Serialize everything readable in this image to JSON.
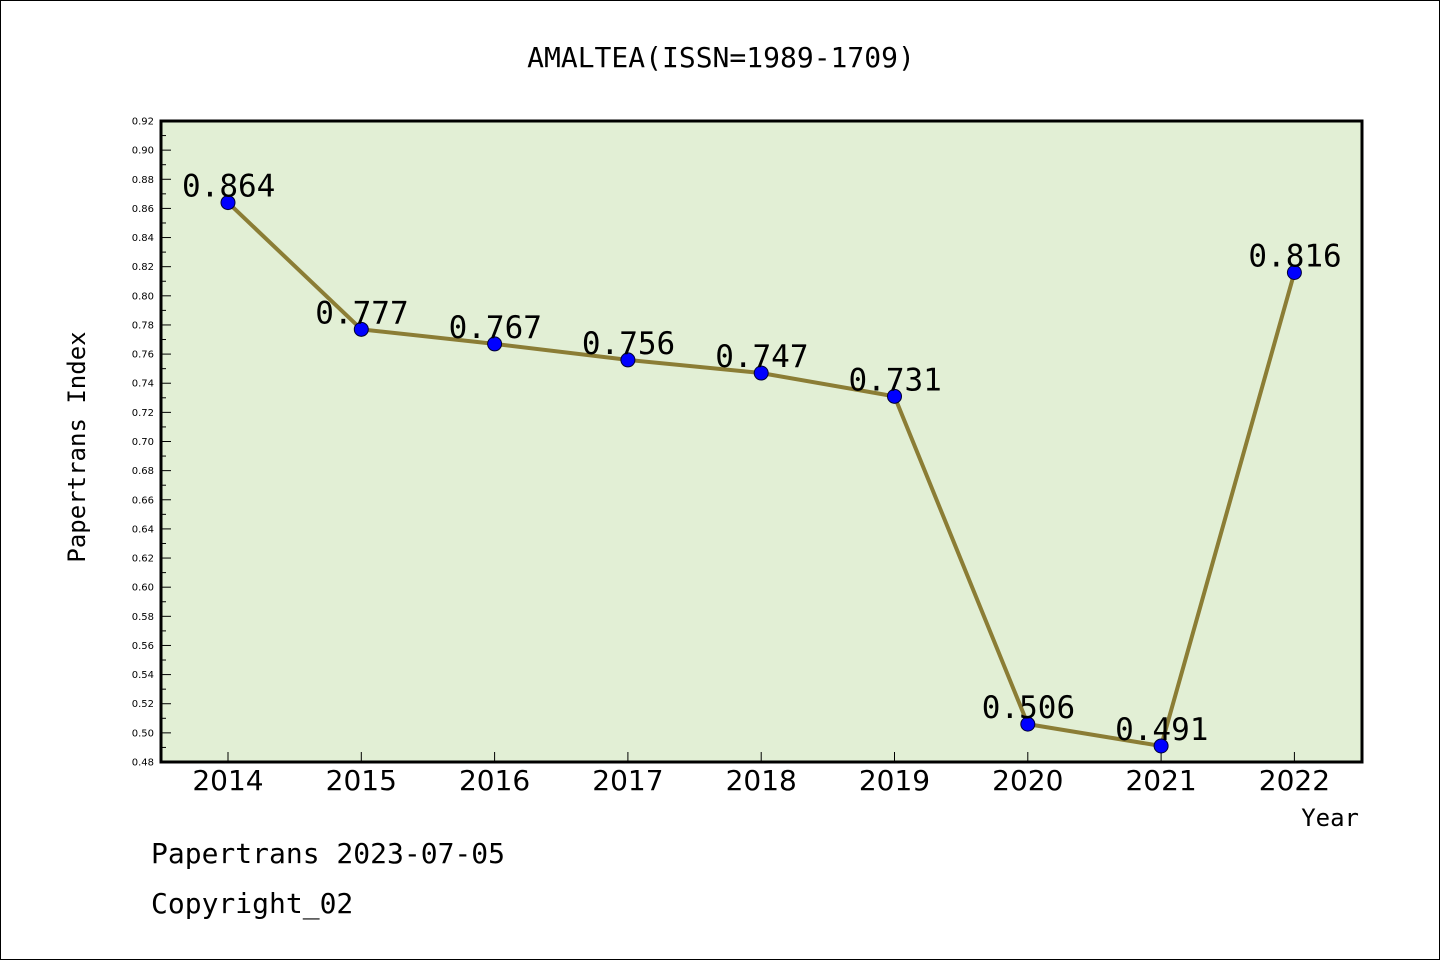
{
  "chart_data": {
    "type": "line",
    "title": "AMALTEA(ISSN=1989-1709)",
    "xlabel": "Year",
    "ylabel": "Papertrans Index",
    "categories": [
      "2014",
      "2015",
      "2016",
      "2017",
      "2018",
      "2019",
      "2020",
      "2021",
      "2022"
    ],
    "series": [
      {
        "values": [
          0.864,
          0.777,
          0.767,
          0.756,
          0.747,
          0.731,
          0.506,
          0.491,
          0.816
        ]
      }
    ],
    "data_labels": [
      "0.864",
      "0.777",
      "0.767",
      "0.756",
      "0.747",
      "0.731",
      "0.506",
      "0.491",
      "0.816"
    ],
    "ylim": [
      0.48,
      0.92
    ],
    "yticks": [
      "0.48",
      "0.50",
      "0.52",
      "0.54",
      "0.56",
      "0.58",
      "0.60",
      "0.62",
      "0.64",
      "0.66",
      "0.68",
      "0.70",
      "0.72",
      "0.74",
      "0.76",
      "0.78",
      "0.80",
      "0.82",
      "0.84",
      "0.86",
      "0.88",
      "0.90",
      "0.92"
    ],
    "grid": false,
    "colors": {
      "plot_background": "#e2efd5",
      "line": "#8b7d35",
      "marker": "#0000ff",
      "axes": "#000000"
    }
  },
  "footer": {
    "line1": "Papertrans 2023-07-05",
    "line2": "Copyright_02"
  }
}
